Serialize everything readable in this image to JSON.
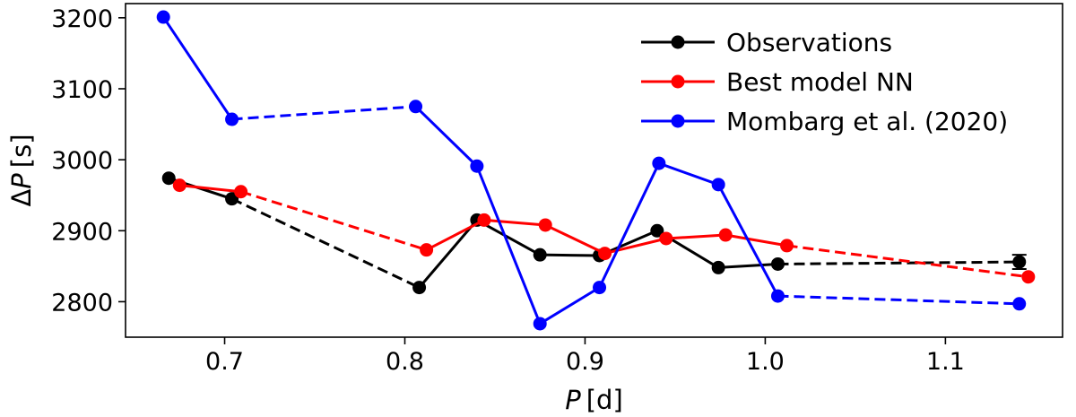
{
  "chart_data": {
    "type": "line",
    "xlabel_italic": "P",
    "xlabel_unit": "[d]",
    "ylabel_prefix": "Δ",
    "ylabel_italic": "P",
    "ylabel_unit": "[s]",
    "xlim": [
      0.645,
      1.165
    ],
    "ylim": [
      2750,
      3220
    ],
    "xticks": [
      0.7,
      0.8,
      0.9,
      1.0,
      1.1
    ],
    "xtick_labels": [
      "0.7",
      "0.8",
      "0.9",
      "1.0",
      "1.1"
    ],
    "yticks": [
      2800,
      2900,
      3000,
      3100,
      3200
    ],
    "ytick_labels": [
      "2800",
      "2900",
      "3000",
      "3100",
      "3200"
    ],
    "legend_position": "top-right",
    "series": [
      {
        "name": "Observations",
        "color": "#000000",
        "x": [
          0.669,
          0.704,
          0.808,
          0.84,
          0.875,
          0.908,
          0.94,
          0.974,
          1.007,
          1.141
        ],
        "y": [
          2974,
          2945,
          2820,
          2915,
          2866,
          2865,
          2900,
          2848,
          2853,
          2856
        ],
        "segment_styles": [
          "solid",
          "dashed",
          "solid",
          "solid",
          "solid",
          "solid",
          "solid",
          "solid",
          "dashed"
        ],
        "error_bar_point_index": 9,
        "error_bar": 10
      },
      {
        "name": "Best model NN",
        "color": "#ff0000",
        "x": [
          0.675,
          0.709,
          0.812,
          0.844,
          0.878,
          0.911,
          0.945,
          0.978,
          1.012,
          1.146
        ],
        "y": [
          2964,
          2955,
          2873,
          2915,
          2908,
          2868,
          2889,
          2894,
          2879,
          2835
        ],
        "segment_styles": [
          "solid",
          "dashed",
          "solid",
          "solid",
          "solid",
          "solid",
          "solid",
          "solid",
          "dashed"
        ]
      },
      {
        "name": "Mombarg et al. (2020)",
        "color": "#0000ff",
        "x": [
          0.666,
          0.704,
          0.806,
          0.84,
          0.875,
          0.908,
          0.941,
          0.974,
          1.007,
          1.141
        ],
        "y": [
          3201,
          3057,
          3075,
          2991,
          2769,
          2820,
          2995,
          2965,
          2808,
          2797
        ],
        "segment_styles": [
          "solid",
          "dashed",
          "solid",
          "solid",
          "solid",
          "solid",
          "solid",
          "solid",
          "dashed"
        ]
      }
    ]
  }
}
